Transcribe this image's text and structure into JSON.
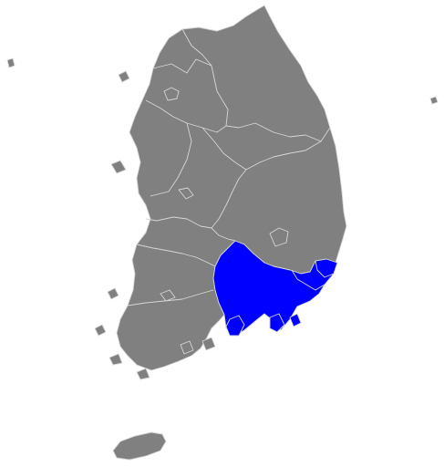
{
  "map": {
    "base_color": "#808080",
    "highlight_color": "#0000ff",
    "border_color": "#d6d6d6",
    "background": "#ffffff"
  }
}
